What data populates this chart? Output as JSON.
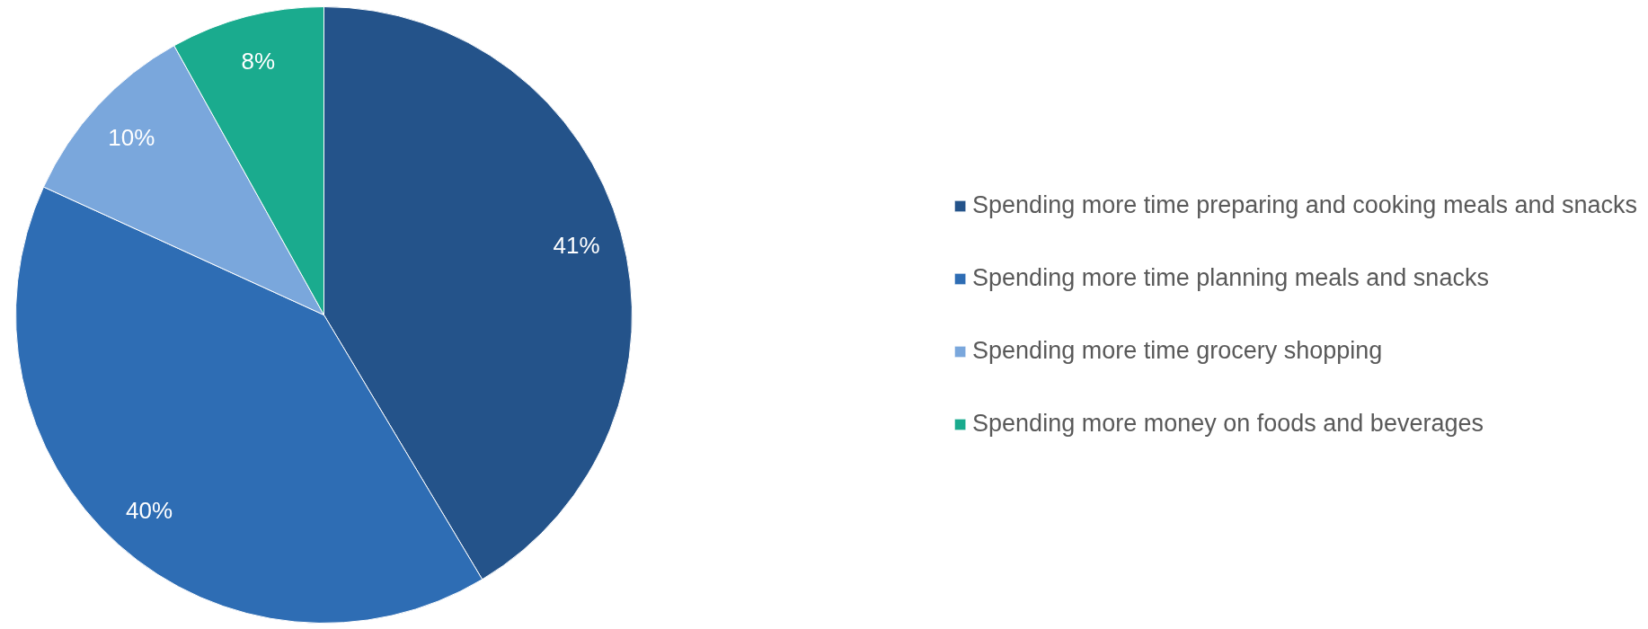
{
  "chart_data": {
    "type": "pie",
    "categories": [
      "Spending more time preparing and cooking meals and snacks",
      "Spending more time planning meals and snacks",
      "Spending more time grocery shopping",
      "Spending more money on foods and beverages"
    ],
    "values": [
      41,
      40,
      10,
      8
    ],
    "value_labels": [
      "41%",
      "40%",
      "10%",
      "8%"
    ],
    "colors": [
      "#24538a",
      "#2e6db4",
      "#7aa7dc",
      "#1aab8e"
    ],
    "legend": "right"
  }
}
